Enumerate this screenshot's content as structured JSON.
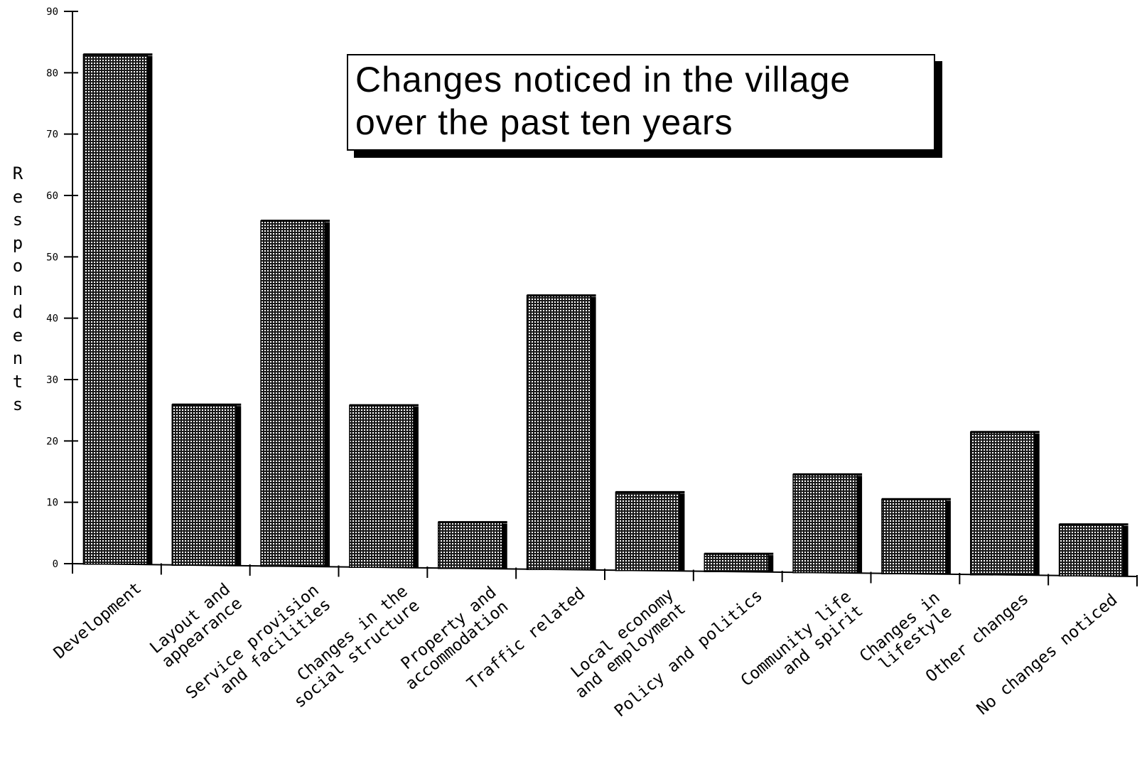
{
  "chart_data": {
    "type": "bar",
    "title_lines": [
      "Changes noticed in the village",
      "over the past ten years"
    ],
    "ylabel": "Respondents",
    "ylim": [
      0,
      90
    ],
    "yticks": [
      0,
      10,
      20,
      30,
      40,
      50,
      60,
      70,
      80,
      90
    ],
    "categories": [
      "Development",
      "Layout and appearance",
      "Service provision and facilities",
      "Changes in the social structure",
      "Property and accommodation",
      "Traffic related",
      "Local economy and employment",
      "Policy and politics",
      "Community life and spirit",
      "Changes in lifestyle",
      "Other changes",
      "No changes noticed"
    ],
    "category_label_lines": [
      [
        "Development"
      ],
      [
        "Layout and",
        "appearance"
      ],
      [
        "Service provision",
        "and facilities"
      ],
      [
        "Changes in the",
        "social structure"
      ],
      [
        "Property and",
        "accommodation"
      ],
      [
        "Traffic related"
      ],
      [
        "Local economy",
        "and employment"
      ],
      [
        "Policy and politics"
      ],
      [
        "Community life",
        "and spirit"
      ],
      [
        "Changes in",
        "lifestyle"
      ],
      [
        "Other changes"
      ],
      [
        "No changes noticed"
      ]
    ],
    "values": [
      83,
      26,
      56,
      26,
      7,
      44,
      12,
      2,
      15,
      11,
      22,
      7
    ],
    "bar_pattern": "dotted-black-fill",
    "grid": false,
    "legend": "none"
  }
}
